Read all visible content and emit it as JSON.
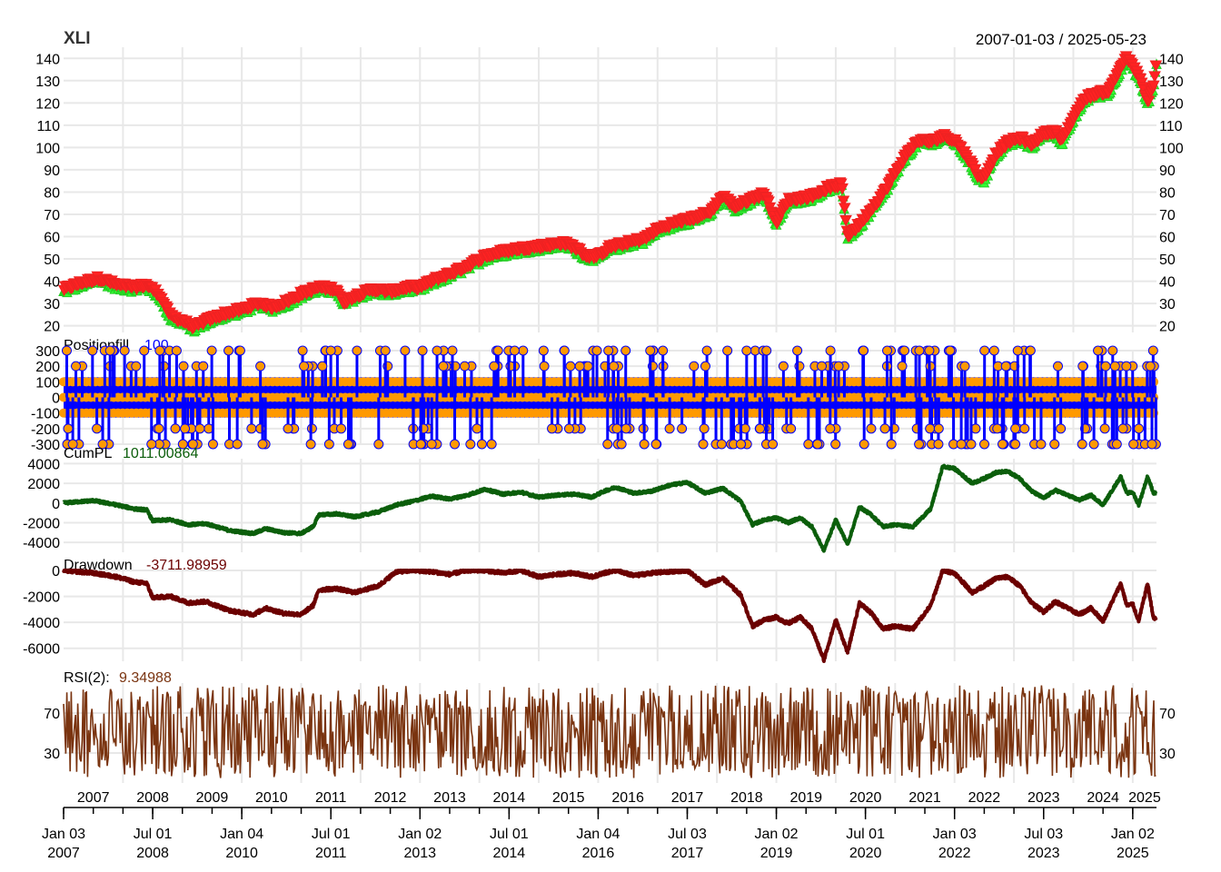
{
  "chart_data": {
    "type": "line",
    "title": "XLI",
    "date_range": "2007-01-03 / 2025-05-23",
    "colors": {
      "price": "#333333",
      "buy_marker": "#33ff33",
      "sell_marker": "#ff2222",
      "position": "#0000ff",
      "position_marker": "#ff9900",
      "cumpl": "#0b5e0b",
      "drawdown": "#6b0000",
      "rsi": "#7a3410",
      "grid": "#e8e8e8"
    },
    "panels": {
      "price": {
        "yticks": [
          "20",
          "30",
          "40",
          "50",
          "60",
          "70",
          "80",
          "90",
          "100",
          "110",
          "120",
          "130",
          "140"
        ],
        "ylim": [
          17,
          145
        ],
        "series": [
          [
            2007.0,
            36
          ],
          [
            2007.3,
            39
          ],
          [
            2007.6,
            41
          ],
          [
            2007.9,
            38
          ],
          [
            2008.2,
            37
          ],
          [
            2008.4,
            38
          ],
          [
            2008.6,
            34
          ],
          [
            2008.8,
            24
          ],
          [
            2009.0,
            22
          ],
          [
            2009.2,
            19
          ],
          [
            2009.4,
            22
          ],
          [
            2009.7,
            25
          ],
          [
            2010.0,
            27
          ],
          [
            2010.3,
            30
          ],
          [
            2010.5,
            28
          ],
          [
            2010.8,
            31
          ],
          [
            2011.0,
            34
          ],
          [
            2011.3,
            37
          ],
          [
            2011.6,
            36
          ],
          [
            2011.7,
            30
          ],
          [
            2011.9,
            33
          ],
          [
            2012.2,
            36
          ],
          [
            2012.5,
            35
          ],
          [
            2012.8,
            37
          ],
          [
            2013.0,
            37
          ],
          [
            2013.3,
            41
          ],
          [
            2013.6,
            44
          ],
          [
            2013.9,
            48
          ],
          [
            2014.1,
            51
          ],
          [
            2014.4,
            53
          ],
          [
            2014.6,
            54
          ],
          [
            2014.9,
            55
          ],
          [
            2015.2,
            56
          ],
          [
            2015.4,
            57
          ],
          [
            2015.6,
            55
          ],
          [
            2015.8,
            51
          ],
          [
            2016.0,
            51
          ],
          [
            2016.2,
            55
          ],
          [
            2016.5,
            57
          ],
          [
            2016.8,
            59
          ],
          [
            2017.0,
            63
          ],
          [
            2017.3,
            66
          ],
          [
            2017.6,
            68
          ],
          [
            2017.9,
            71
          ],
          [
            2018.1,
            78
          ],
          [
            2018.3,
            73
          ],
          [
            2018.6,
            77
          ],
          [
            2018.8,
            79
          ],
          [
            2019.0,
            66
          ],
          [
            2019.2,
            76
          ],
          [
            2019.4,
            77
          ],
          [
            2019.6,
            78
          ],
          [
            2019.9,
            82
          ],
          [
            2020.1,
            83
          ],
          [
            2020.2,
            60
          ],
          [
            2020.4,
            65
          ],
          [
            2020.6,
            72
          ],
          [
            2020.8,
            79
          ],
          [
            2021.0,
            88
          ],
          [
            2021.2,
            97
          ],
          [
            2021.4,
            103
          ],
          [
            2021.6,
            102
          ],
          [
            2021.8,
            105
          ],
          [
            2022.0,
            103
          ],
          [
            2022.2,
            96
          ],
          [
            2022.4,
            87
          ],
          [
            2022.5,
            86
          ],
          [
            2022.7,
            97
          ],
          [
            2022.9,
            102
          ],
          [
            2023.1,
            104
          ],
          [
            2023.3,
            101
          ],
          [
            2023.5,
            106
          ],
          [
            2023.7,
            107
          ],
          [
            2023.8,
            102
          ],
          [
            2024.0,
            113
          ],
          [
            2024.2,
            122
          ],
          [
            2024.4,
            124
          ],
          [
            2024.6,
            125
          ],
          [
            2024.8,
            136
          ],
          [
            2024.9,
            140
          ],
          [
            2025.0,
            136
          ],
          [
            2025.1,
            132
          ],
          [
            2025.25,
            120
          ],
          [
            2025.35,
            128
          ],
          [
            2025.4,
            138
          ]
        ]
      },
      "position_fill": {
        "label": "Positionfill",
        "last_value": "100",
        "yticks": [
          "-300",
          "-200",
          "-100",
          "0",
          "100",
          "200",
          "300"
        ],
        "ylim": [
          -300,
          300
        ]
      },
      "cumpl": {
        "label": "CumPL",
        "last_value": "1011.00864",
        "yticks": [
          "-4000",
          "-2000",
          "0",
          "2000",
          "4000"
        ],
        "ylim": [
          -5000,
          4500
        ],
        "series": [
          [
            2007.0,
            0
          ],
          [
            2007.5,
            250
          ],
          [
            2007.9,
            -200
          ],
          [
            2008.2,
            -600
          ],
          [
            2008.4,
            -700
          ],
          [
            2008.5,
            -1800
          ],
          [
            2008.8,
            -1700
          ],
          [
            2009.1,
            -2200
          ],
          [
            2009.4,
            -2100
          ],
          [
            2009.8,
            -2800
          ],
          [
            2010.2,
            -3100
          ],
          [
            2010.4,
            -2600
          ],
          [
            2010.7,
            -3000
          ],
          [
            2011.0,
            -3100
          ],
          [
            2011.2,
            -2400
          ],
          [
            2011.3,
            -1200
          ],
          [
            2011.6,
            -1100
          ],
          [
            2011.9,
            -1400
          ],
          [
            2012.3,
            -900
          ],
          [
            2012.6,
            -200
          ],
          [
            2012.9,
            200
          ],
          [
            2013.2,
            700
          ],
          [
            2013.5,
            400
          ],
          [
            2013.8,
            800
          ],
          [
            2014.1,
            1400
          ],
          [
            2014.4,
            900
          ],
          [
            2014.7,
            1100
          ],
          [
            2015.0,
            600
          ],
          [
            2015.3,
            800
          ],
          [
            2015.6,
            900
          ],
          [
            2015.9,
            600
          ],
          [
            2016.1,
            1200
          ],
          [
            2016.3,
            1600
          ],
          [
            2016.6,
            1000
          ],
          [
            2016.9,
            1200
          ],
          [
            2017.2,
            1800
          ],
          [
            2017.5,
            2100
          ],
          [
            2017.8,
            1000
          ],
          [
            2018.1,
            1500
          ],
          [
            2018.4,
            200
          ],
          [
            2018.6,
            -2200
          ],
          [
            2018.8,
            -1700
          ],
          [
            2019.0,
            -1500
          ],
          [
            2019.2,
            -2000
          ],
          [
            2019.4,
            -1500
          ],
          [
            2019.6,
            -2400
          ],
          [
            2019.8,
            -4800
          ],
          [
            2020.0,
            -1700
          ],
          [
            2020.2,
            -4200
          ],
          [
            2020.4,
            -400
          ],
          [
            2020.6,
            -1200
          ],
          [
            2020.8,
            -2400
          ],
          [
            2021.0,
            -2200
          ],
          [
            2021.3,
            -2400
          ],
          [
            2021.6,
            -600
          ],
          [
            2021.8,
            3700
          ],
          [
            2022.0,
            3500
          ],
          [
            2022.3,
            2000
          ],
          [
            2022.5,
            2500
          ],
          [
            2022.7,
            3100
          ],
          [
            2022.9,
            3200
          ],
          [
            2023.1,
            2500
          ],
          [
            2023.3,
            1200
          ],
          [
            2023.5,
            500
          ],
          [
            2023.7,
            1300
          ],
          [
            2023.9,
            800
          ],
          [
            2024.1,
            300
          ],
          [
            2024.3,
            800
          ],
          [
            2024.5,
            -200
          ],
          [
            2024.8,
            2700
          ],
          [
            2024.9,
            1000
          ],
          [
            2025.0,
            1100
          ],
          [
            2025.1,
            -200
          ],
          [
            2025.25,
            2700
          ],
          [
            2025.35,
            1011
          ]
        ]
      },
      "drawdown": {
        "label": "Drawdown",
        "last_value": "-3711.98959",
        "yticks": [
          "-6000",
          "-4000",
          "-2000",
          "0"
        ],
        "ylim": [
          -7000,
          0
        ],
        "series": [
          [
            2007.0,
            0
          ],
          [
            2007.5,
            -200
          ],
          [
            2007.9,
            -500
          ],
          [
            2008.2,
            -900
          ],
          [
            2008.4,
            -1000
          ],
          [
            2008.5,
            -2100
          ],
          [
            2008.8,
            -2000
          ],
          [
            2009.1,
            -2500
          ],
          [
            2009.4,
            -2400
          ],
          [
            2009.8,
            -3100
          ],
          [
            2010.2,
            -3400
          ],
          [
            2010.4,
            -2900
          ],
          [
            2010.7,
            -3300
          ],
          [
            2011.0,
            -3400
          ],
          [
            2011.2,
            -2700
          ],
          [
            2011.3,
            -1500
          ],
          [
            2011.6,
            -1400
          ],
          [
            2011.9,
            -1700
          ],
          [
            2012.3,
            -1200
          ],
          [
            2012.6,
            -100
          ],
          [
            2012.9,
            0
          ],
          [
            2013.2,
            -100
          ],
          [
            2013.5,
            -300
          ],
          [
            2013.8,
            0
          ],
          [
            2014.1,
            0
          ],
          [
            2014.4,
            -200
          ],
          [
            2014.7,
            0
          ],
          [
            2015.0,
            -500
          ],
          [
            2015.3,
            -300
          ],
          [
            2015.6,
            -200
          ],
          [
            2015.9,
            -500
          ],
          [
            2016.1,
            -200
          ],
          [
            2016.3,
            0
          ],
          [
            2016.6,
            -400
          ],
          [
            2016.9,
            -200
          ],
          [
            2017.2,
            -100
          ],
          [
            2017.5,
            0
          ],
          [
            2017.8,
            -1100
          ],
          [
            2018.1,
            -600
          ],
          [
            2018.4,
            -1900
          ],
          [
            2018.6,
            -4300
          ],
          [
            2018.8,
            -3800
          ],
          [
            2019.0,
            -3600
          ],
          [
            2019.2,
            -4100
          ],
          [
            2019.4,
            -3600
          ],
          [
            2019.6,
            -4500
          ],
          [
            2019.8,
            -6900
          ],
          [
            2020.0,
            -3800
          ],
          [
            2020.2,
            -6300
          ],
          [
            2020.4,
            -2500
          ],
          [
            2020.6,
            -3300
          ],
          [
            2020.8,
            -4500
          ],
          [
            2021.0,
            -4300
          ],
          [
            2021.3,
            -4500
          ],
          [
            2021.6,
            -2700
          ],
          [
            2021.8,
            0
          ],
          [
            2022.0,
            -200
          ],
          [
            2022.3,
            -1700
          ],
          [
            2022.5,
            -1200
          ],
          [
            2022.7,
            -600
          ],
          [
            2022.9,
            -500
          ],
          [
            2023.1,
            -1200
          ],
          [
            2023.3,
            -2500
          ],
          [
            2023.5,
            -3200
          ],
          [
            2023.7,
            -2400
          ],
          [
            2023.9,
            -2900
          ],
          [
            2024.1,
            -3400
          ],
          [
            2024.3,
            -2900
          ],
          [
            2024.5,
            -3900
          ],
          [
            2024.8,
            -1000
          ],
          [
            2024.9,
            -2700
          ],
          [
            2025.0,
            -2600
          ],
          [
            2025.1,
            -3900
          ],
          [
            2025.25,
            -1000
          ],
          [
            2025.35,
            -3712
          ]
        ]
      },
      "rsi": {
        "label": "RSI(2):",
        "last_value": "9.34988",
        "yticks": [
          "30",
          "70"
        ],
        "ylim": [
          0,
          100
        ]
      }
    },
    "x_axis": {
      "years": [
        "2007",
        "2008",
        "2009",
        "2010",
        "2011",
        "2012",
        "2013",
        "2014",
        "2015",
        "2016",
        "2017",
        "2018",
        "2019",
        "2020",
        "2021",
        "2022",
        "2023",
        "2024",
        "2025"
      ],
      "major_ticks": [
        {
          "l1": "Jan 03",
          "l2": "2007",
          "t": 2007.0
        },
        {
          "l1": "Jul 01",
          "l2": "2008",
          "t": 2008.5
        },
        {
          "l1": "Jan 04",
          "l2": "2010",
          "t": 2010.0
        },
        {
          "l1": "Jul 01",
          "l2": "2011",
          "t": 2011.5
        },
        {
          "l1": "Jan 02",
          "l2": "2013",
          "t": 2013.0
        },
        {
          "l1": "Jul 01",
          "l2": "2014",
          "t": 2014.5
        },
        {
          "l1": "Jan 04",
          "l2": "2016",
          "t": 2016.0
        },
        {
          "l1": "Jul 03",
          "l2": "2017",
          "t": 2017.5
        },
        {
          "l1": "Jan 02",
          "l2": "2019",
          "t": 2019.0
        },
        {
          "l1": "Jul 01",
          "l2": "2020",
          "t": 2020.5
        },
        {
          "l1": "Jan 03",
          "l2": "2022",
          "t": 2022.0
        },
        {
          "l1": "Jul 03",
          "l2": "2023",
          "t": 2023.5
        },
        {
          "l1": "Jan 02",
          "l2": "2025",
          "t": 2025.0
        }
      ]
    }
  }
}
